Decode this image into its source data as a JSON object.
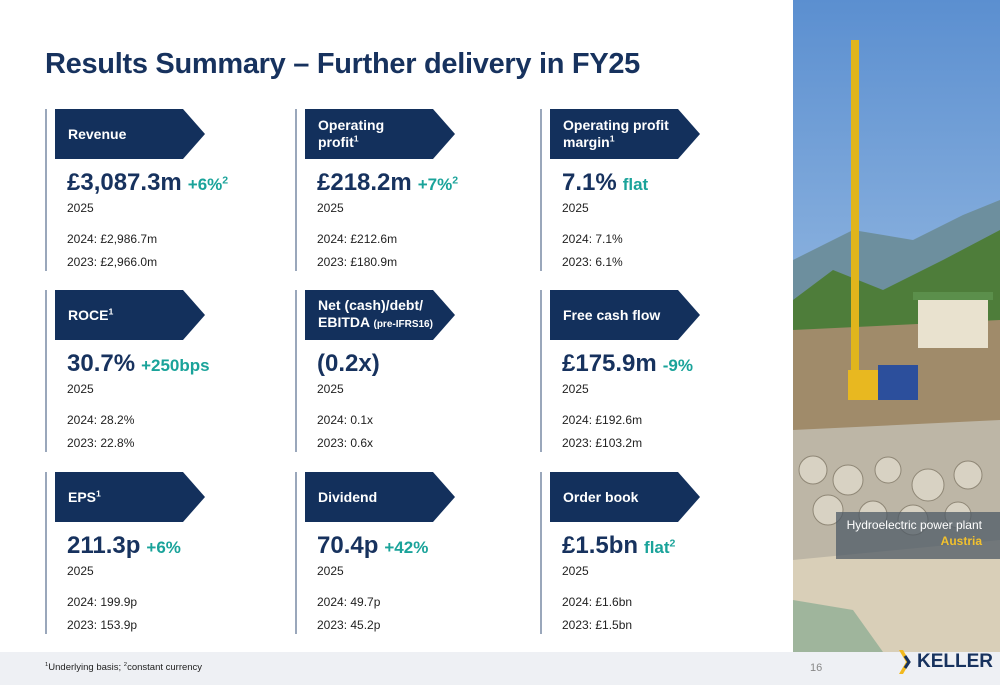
{
  "title": "Results Summary – Further delivery in FY25",
  "cards": [
    {
      "label": [
        "Revenue"
      ],
      "value": "£3,087.3m",
      "change": "+6%",
      "change_sup": "2",
      "year": "2025",
      "prior": [
        "2024: £2,986.7m",
        "2023: £2,966.0m"
      ]
    },
    {
      "label": [
        "Operating",
        "profit"
      ],
      "sup": "1",
      "value": "£218.2m",
      "change": "+7%",
      "change_sup": "2",
      "year": "2025",
      "prior": [
        "2024: £212.6m",
        "2023: £180.9m"
      ]
    },
    {
      "label": [
        "Operating profit",
        "margin"
      ],
      "sup": "1",
      "value": "7.1%",
      "change": "flat",
      "year": "2025",
      "prior": [
        "2024: 7.1%",
        "2023: 6.1%"
      ]
    },
    {
      "label": [
        "ROCE"
      ],
      "sup": "1",
      "value": "30.7%",
      "change": "+250bps",
      "year": "2025",
      "prior": [
        "2024: 28.2%",
        "2023: 22.8%"
      ]
    },
    {
      "label": [
        "Net (cash)/debt/",
        "EBITDA"
      ],
      "note": "(pre-IFRS16)",
      "value": "(0.2x)",
      "year": "2025",
      "prior": [
        "2024: 0.1x",
        "2023: 0.6x"
      ]
    },
    {
      "label": [
        "Free cash flow"
      ],
      "value": "£175.9m",
      "change": "-9%",
      "year": "2025",
      "prior": [
        "2024: £192.6m",
        "2023: £103.2m"
      ]
    },
    {
      "label": [
        "EPS"
      ],
      "sup": "1",
      "value": "211.3p",
      "change": "+6%",
      "year": "2025",
      "prior": [
        "2024: 199.9p",
        "2023: 153.9p"
      ]
    },
    {
      "label": [
        "Dividend"
      ],
      "value": "70.4p",
      "change": "+42%",
      "year": "2025",
      "prior": [
        "2024: 49.7p",
        "2023: 45.2p"
      ]
    },
    {
      "label": [
        "Order book"
      ],
      "value": "£1.5bn",
      "change": "flat",
      "change_sup": "2",
      "year": "2025",
      "prior": [
        "2024: £1.6bn",
        "2023: £1.5bn"
      ]
    }
  ],
  "caption": {
    "text": "Hydroelectric power plant",
    "place": "Austria"
  },
  "footnotes": [
    {
      "mark": "1",
      "text": "Underlying basis; "
    },
    {
      "mark": "2",
      "text": "constant currency"
    }
  ],
  "page_number": "16",
  "logo": "KELLER"
}
